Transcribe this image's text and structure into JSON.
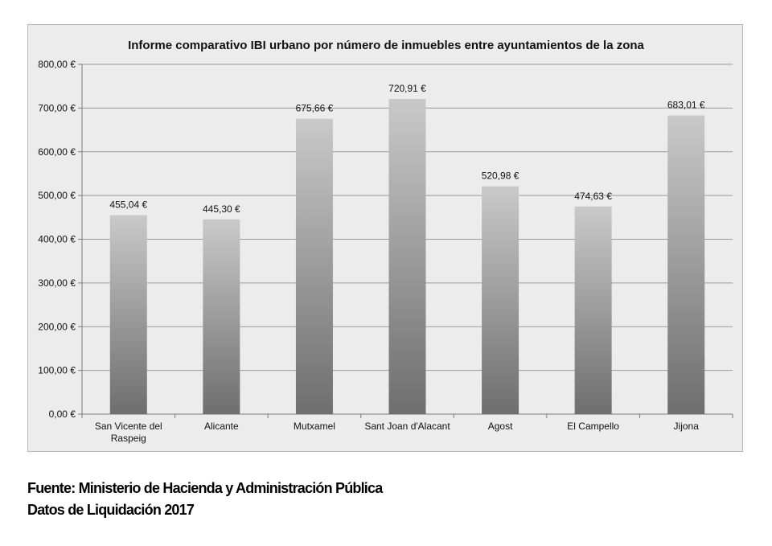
{
  "chart_data": {
    "type": "bar",
    "title": "Informe comparativo IBI urbano por número de inmuebles entre ayuntamientos de la zona",
    "categories": [
      "San Vicente del\nRaspeig",
      "Alicante",
      "Mutxamel",
      "Sant Joan d'Alacant",
      "Agost",
      "El Campello",
      "Jijona"
    ],
    "values": [
      455.04,
      445.3,
      675.66,
      720.91,
      520.98,
      474.63,
      683.01
    ],
    "value_labels": [
      "455,04 €",
      "445,30 €",
      "675,66 €",
      "720,91 €",
      "520,98 €",
      "474,63 €",
      "683,01 €"
    ],
    "ylim": [
      0,
      800
    ],
    "yticks": [
      0,
      100,
      200,
      300,
      400,
      500,
      600,
      700,
      800
    ],
    "ytick_labels": [
      "0,00 €",
      "100,00 €",
      "200,00 €",
      "300,00 €",
      "400,00 €",
      "500,00 €",
      "600,00 €",
      "700,00 €",
      "800,00 €"
    ],
    "grid": true,
    "bar_gradient": [
      "#c9c9c9",
      "#6e6e6e"
    ]
  },
  "source": {
    "line1": "Fuente: Ministerio de Hacienda y Administración Pública",
    "line2": "Datos de Liquidación 2017"
  }
}
